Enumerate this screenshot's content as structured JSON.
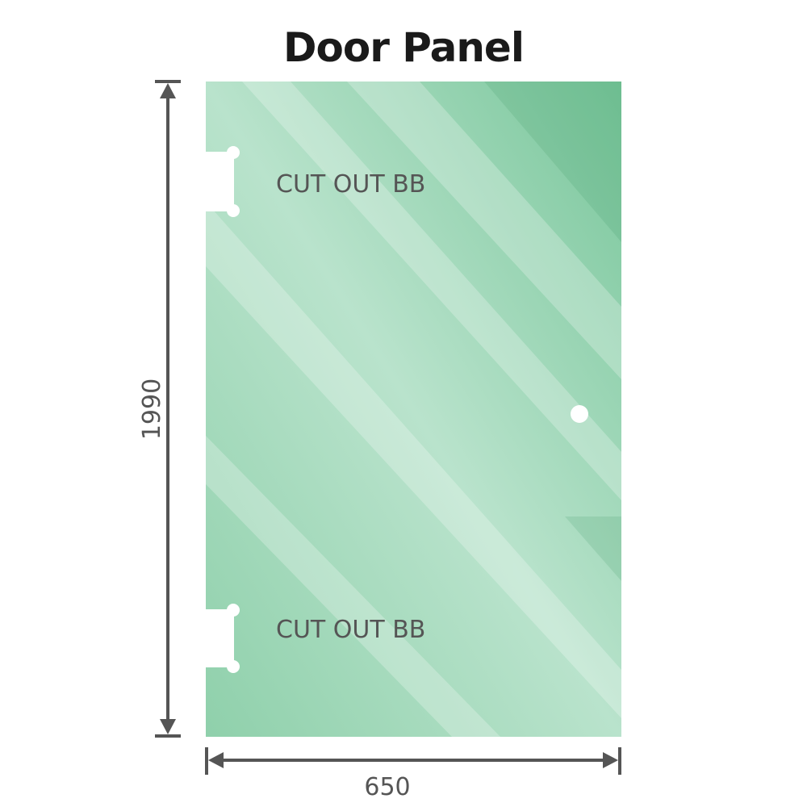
{
  "title": "Door Panel",
  "panel": {
    "height_label": "1990",
    "width_label": "650",
    "cutouts": [
      {
        "label": "CUT OUT BB"
      },
      {
        "label": "CUT OUT BB"
      }
    ],
    "glass_color": "#7fcaa0",
    "glass_highlight": "#bde5d0"
  },
  "dimension_color": "#555555"
}
